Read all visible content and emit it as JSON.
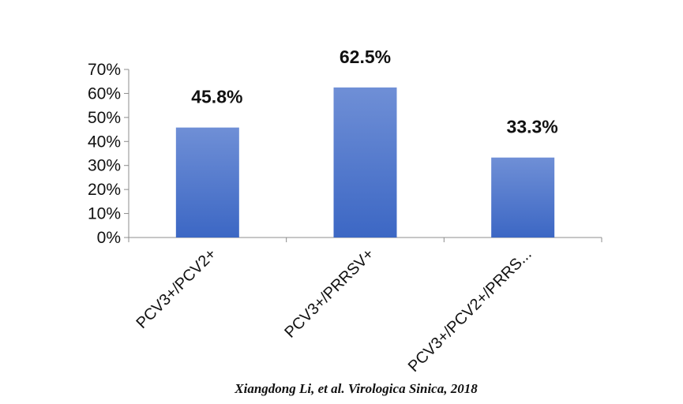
{
  "chart_data": {
    "type": "bar",
    "categories": [
      "PCV3+/PCV2+",
      "PCV3+/PRRSV+",
      "PCV3+/PCV2+/PRRS..."
    ],
    "values": [
      45.8,
      62.5,
      33.3
    ],
    "data_labels": [
      "45.8%",
      "62.5%",
      "33.3%"
    ],
    "y_ticks": [
      "0%",
      "10%",
      "20%",
      "30%",
      "40%",
      "50%",
      "60%",
      "70%"
    ],
    "ylim": [
      0,
      70
    ],
    "grid": false,
    "bar_color": "#3c67c4",
    "bar_color_top": "#6f8fd6"
  },
  "citation": "Xiangdong Li, et al.  Virologica Sinica, 2018"
}
